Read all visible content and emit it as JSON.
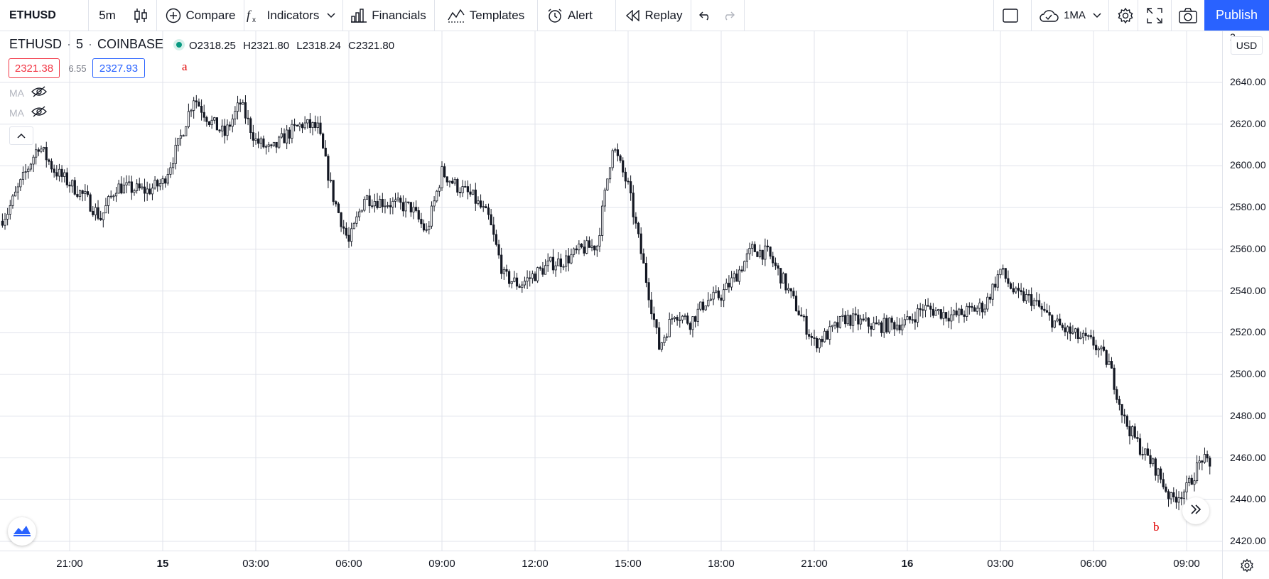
{
  "toolbar": {
    "symbol": "ETHUSD",
    "interval": "5m",
    "compare": "Compare",
    "indicators": "Indicators",
    "financials": "Financials",
    "templates": "Templates",
    "alert": "Alert",
    "replay": "Replay",
    "indicator_count": "1MA",
    "publish": "Publish"
  },
  "legend": {
    "symbol": "ETHUSD",
    "interval": "5",
    "exchange": "COINBASE",
    "open": "O2318.25",
    "high": "H2321.80",
    "low": "L2318.24",
    "close": "C2321.80",
    "bid": "2321.38",
    "spread": "6.55",
    "ask": "2327.93",
    "ma1": "MA",
    "ma2": "MA"
  },
  "annotations": {
    "a": "a",
    "b": "b"
  },
  "price_axis": {
    "currency": "USD",
    "labels": [
      "2640.00",
      "2620.00",
      "2600.00",
      "2580.00",
      "2560.00",
      "2540.00",
      "2520.00",
      "2500.00",
      "2480.00",
      "2460.00",
      "2440.00",
      "2420.00"
    ],
    "partial_top": "2"
  },
  "time_axis": {
    "labels": [
      "21:00",
      "15",
      "03:00",
      "06:00",
      "09:00",
      "12:00",
      "15:00",
      "18:00",
      "21:00",
      "16",
      "03:00",
      "06:00",
      "09:00"
    ]
  },
  "colors": {
    "accent": "#2962ff",
    "bid": "#f23645",
    "ask": "#2962ff",
    "candle": "#131722",
    "grid": "#e0e3eb",
    "annotation": "#e00000",
    "live_dot": "#089981"
  },
  "chart_data": {
    "type": "candlestick",
    "symbol": "ETHUSD",
    "interval_minutes": 5,
    "ylim": [
      2420,
      2660
    ],
    "close_path": [
      [
        "14 18:00",
        2560
      ],
      [
        "14 19:00",
        2578
      ],
      [
        "14 20:00",
        2610
      ],
      [
        "14 20:30",
        2598
      ],
      [
        "14 21:30",
        2585
      ],
      [
        "14 22:00",
        2575
      ],
      [
        "14 22:30",
        2590
      ],
      [
        "14 23:30",
        2588
      ],
      [
        "15 00:00",
        2592
      ],
      [
        "15 00:30",
        2610
      ],
      [
        "15 01:00",
        2633
      ],
      [
        "15 01:30",
        2622
      ],
      [
        "15 02:00",
        2615
      ],
      [
        "15 02:30",
        2630
      ],
      [
        "15 03:00",
        2612
      ],
      [
        "15 03:30",
        2607
      ],
      [
        "15 04:00",
        2615
      ],
      [
        "15 04:30",
        2620
      ],
      [
        "15 05:00",
        2618
      ],
      [
        "15 05:30",
        2585
      ],
      [
        "15 06:00",
        2563
      ],
      [
        "15 06:30",
        2585
      ],
      [
        "15 07:00",
        2583
      ],
      [
        "15 08:00",
        2580
      ],
      [
        "15 08:30",
        2568
      ],
      [
        "15 09:00",
        2597
      ],
      [
        "15 09:30",
        2590
      ],
      [
        "15 10:00",
        2585
      ],
      [
        "15 10:30",
        2575
      ],
      [
        "15 11:00",
        2547
      ],
      [
        "15 11:30",
        2543
      ],
      [
        "15 12:00",
        2548
      ],
      [
        "15 12:30",
        2553
      ],
      [
        "15 13:00",
        2555
      ],
      [
        "15 13:30",
        2560
      ],
      [
        "15 14:00",
        2562
      ],
      [
        "15 14:30",
        2610
      ],
      [
        "15 15:00",
        2590
      ],
      [
        "15 15:30",
        2552
      ],
      [
        "15 16:00",
        2513
      ],
      [
        "15 16:30",
        2530
      ],
      [
        "15 17:00",
        2525
      ],
      [
        "15 17:30",
        2535
      ],
      [
        "15 18:00",
        2538
      ],
      [
        "15 18:30",
        2548
      ],
      [
        "15 19:00",
        2560
      ],
      [
        "15 19:30",
        2558
      ],
      [
        "15 20:00",
        2545
      ],
      [
        "15 20:30",
        2530
      ],
      [
        "15 21:00",
        2515
      ],
      [
        "15 21:30",
        2520
      ],
      [
        "15 22:00",
        2527
      ],
      [
        "15 23:00",
        2523
      ],
      [
        "16 00:00",
        2525
      ],
      [
        "16 00:30",
        2532
      ],
      [
        "16 01:30",
        2528
      ],
      [
        "16 02:30",
        2533
      ],
      [
        "16 03:00",
        2550
      ],
      [
        "16 03:30",
        2538
      ],
      [
        "16 04:00",
        2536
      ],
      [
        "16 04:30",
        2528
      ],
      [
        "16 05:00",
        2522
      ],
      [
        "16 05:30",
        2518
      ],
      [
        "16 06:00",
        2515
      ],
      [
        "16 06:30",
        2505
      ],
      [
        "16 07:00",
        2478
      ],
      [
        "16 07:30",
        2465
      ],
      [
        "16 08:00",
        2455
      ],
      [
        "16 08:30",
        2440
      ],
      [
        "16 09:00",
        2445
      ],
      [
        "16 09:30",
        2460
      ],
      [
        "16 09:45",
        2455
      ]
    ],
    "x_ticks": [
      "21:00",
      "15",
      "03:00",
      "06:00",
      "09:00",
      "12:00",
      "15:00",
      "18:00",
      "21:00",
      "16",
      "03:00",
      "06:00",
      "09:00"
    ],
    "y_ticks": [
      2640,
      2620,
      2600,
      2580,
      2560,
      2540,
      2520,
      2500,
      2480,
      2460,
      2440,
      2420
    ],
    "annotations": [
      {
        "label": "a",
        "near": "high 15 01:00"
      },
      {
        "label": "b",
        "near": "low 16 08:30"
      }
    ],
    "grid": true
  }
}
